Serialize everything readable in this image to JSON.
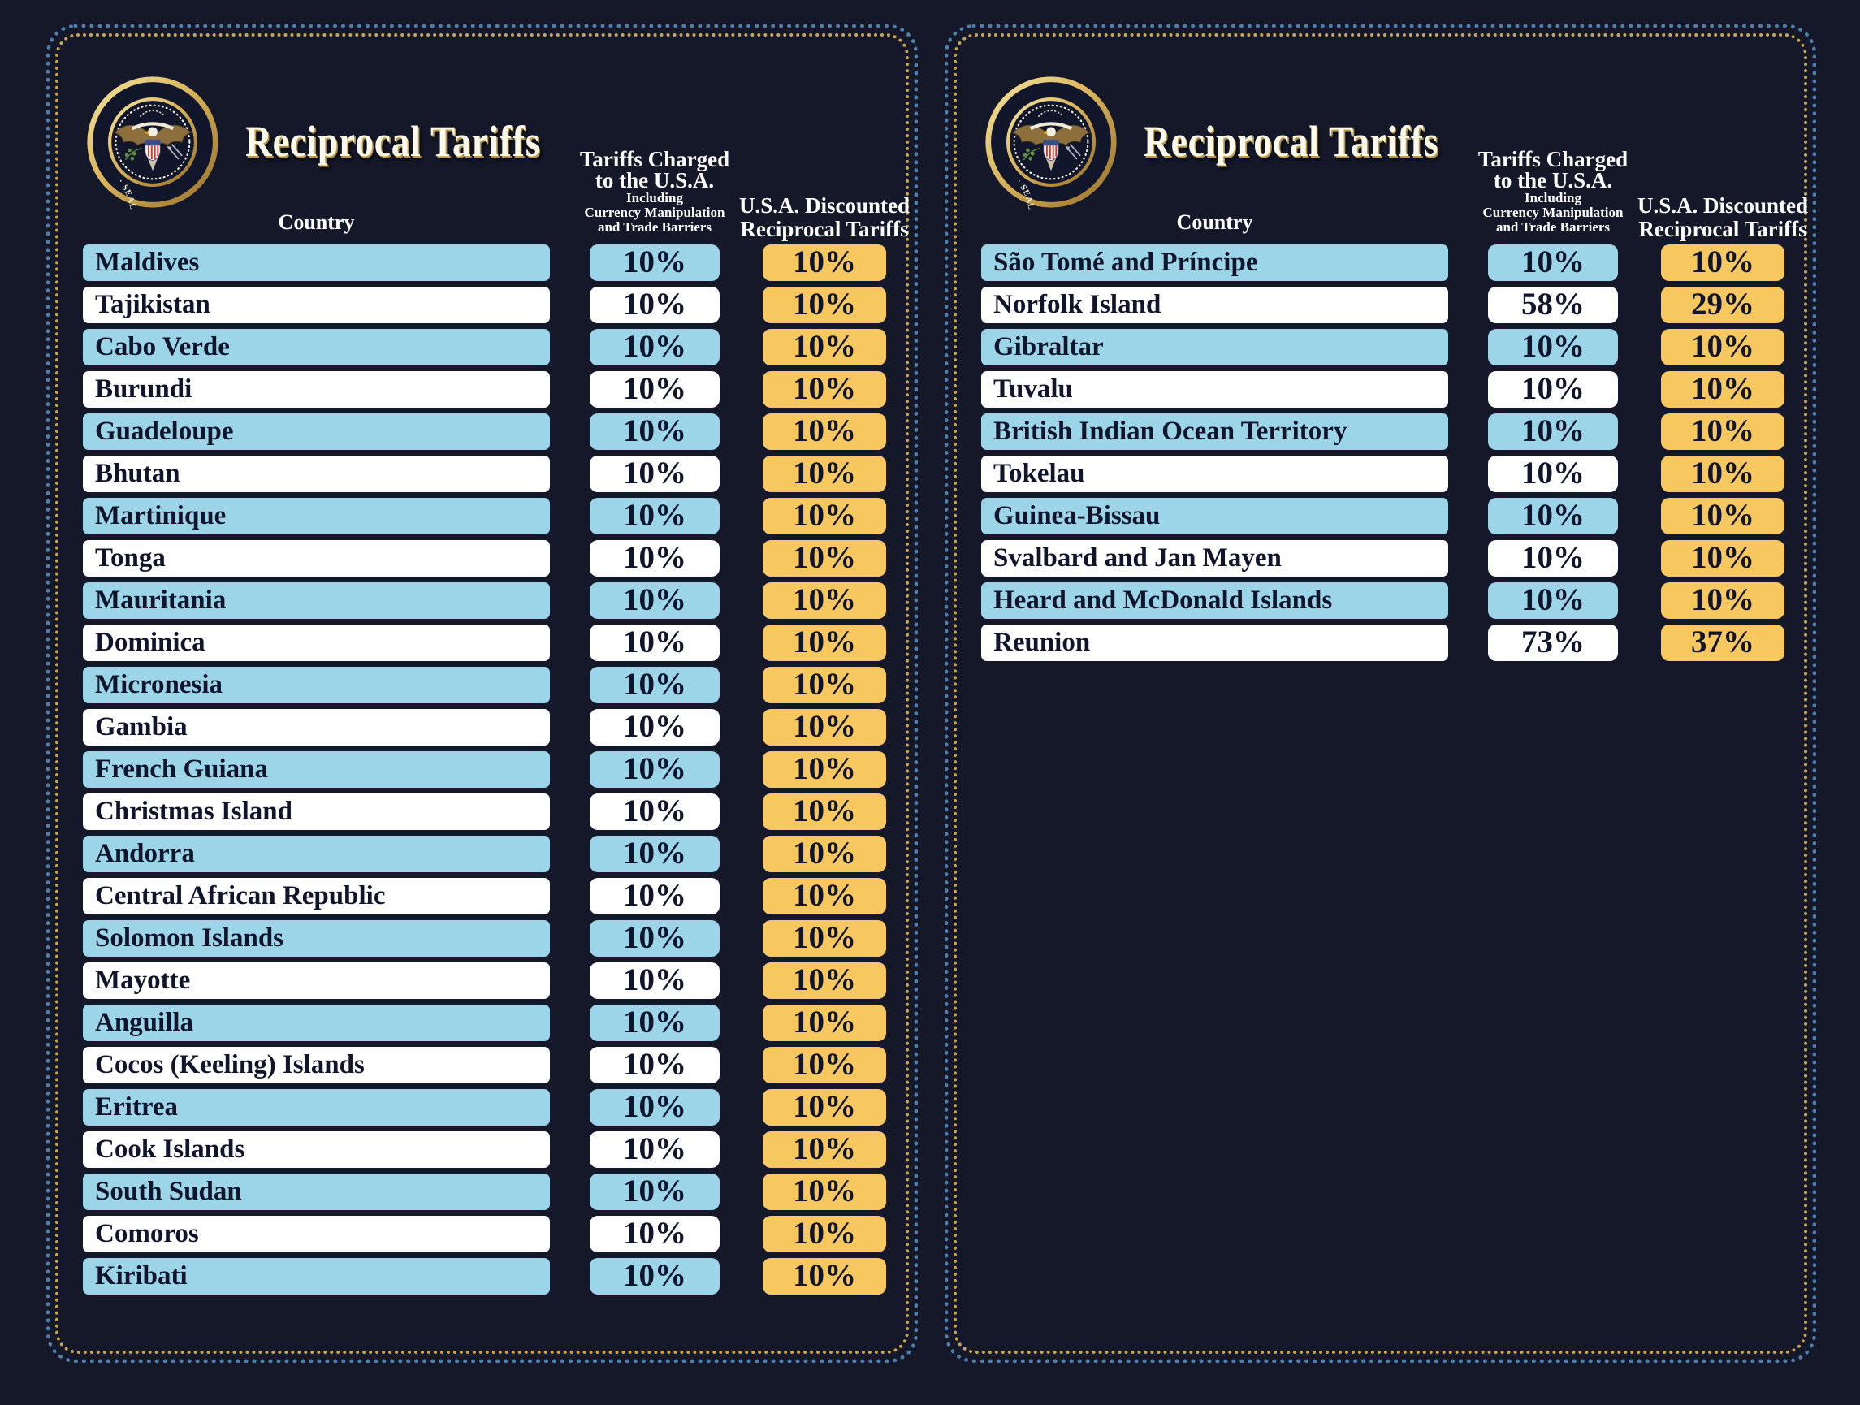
{
  "colors": {
    "background": "#141829",
    "row_blue": "#9dd5e8",
    "row_white": "#ffffff",
    "tariff_yellow": "#f6c85f",
    "border_blue_dots": "#4d7fad",
    "border_gold_dots": "#c9a54e",
    "row_text": "#11152c",
    "header_text": "#ffffff"
  },
  "seal": {
    "ring_text": "· SEAL OF THE PRESIDENT OF THE UNITED STATES ·"
  },
  "panels": [
    {
      "title": "Reciprocal Tariffs",
      "header": {
        "country": "Country",
        "charged_line1": "Tariffs Charged",
        "charged_line2": "to the U.S.A.",
        "charged_sub1": "Including",
        "charged_sub2": "Currency Manipulation",
        "charged_sub3": "and Trade Barriers",
        "discounted_line1": "U.S.A. Discounted",
        "discounted_line2": "Reciprocal Tariffs"
      },
      "rows": [
        {
          "country": "Maldives",
          "charged": "10%",
          "discounted": "10%"
        },
        {
          "country": "Tajikistan",
          "charged": "10%",
          "discounted": "10%"
        },
        {
          "country": "Cabo Verde",
          "charged": "10%",
          "discounted": "10%"
        },
        {
          "country": "Burundi",
          "charged": "10%",
          "discounted": "10%"
        },
        {
          "country": "Guadeloupe",
          "charged": "10%",
          "discounted": "10%"
        },
        {
          "country": "Bhutan",
          "charged": "10%",
          "discounted": "10%"
        },
        {
          "country": "Martinique",
          "charged": "10%",
          "discounted": "10%"
        },
        {
          "country": "Tonga",
          "charged": "10%",
          "discounted": "10%"
        },
        {
          "country": "Mauritania",
          "charged": "10%",
          "discounted": "10%"
        },
        {
          "country": "Dominica",
          "charged": "10%",
          "discounted": "10%"
        },
        {
          "country": "Micronesia",
          "charged": "10%",
          "discounted": "10%"
        },
        {
          "country": "Gambia",
          "charged": "10%",
          "discounted": "10%"
        },
        {
          "country": "French Guiana",
          "charged": "10%",
          "discounted": "10%"
        },
        {
          "country": "Christmas Island",
          "charged": "10%",
          "discounted": "10%"
        },
        {
          "country": "Andorra",
          "charged": "10%",
          "discounted": "10%"
        },
        {
          "country": "Central African Republic",
          "charged": "10%",
          "discounted": "10%"
        },
        {
          "country": "Solomon Islands",
          "charged": "10%",
          "discounted": "10%"
        },
        {
          "country": "Mayotte",
          "charged": "10%",
          "discounted": "10%"
        },
        {
          "country": "Anguilla",
          "charged": "10%",
          "discounted": "10%"
        },
        {
          "country": "Cocos (Keeling) Islands",
          "charged": "10%",
          "discounted": "10%"
        },
        {
          "country": "Eritrea",
          "charged": "10%",
          "discounted": "10%"
        },
        {
          "country": "Cook Islands",
          "charged": "10%",
          "discounted": "10%"
        },
        {
          "country": "South Sudan",
          "charged": "10%",
          "discounted": "10%"
        },
        {
          "country": "Comoros",
          "charged": "10%",
          "discounted": "10%"
        },
        {
          "country": "Kiribati",
          "charged": "10%",
          "discounted": "10%"
        }
      ]
    },
    {
      "title": "Reciprocal Tariffs",
      "header": {
        "country": "Country",
        "charged_line1": "Tariffs Charged",
        "charged_line2": "to the U.S.A.",
        "charged_sub1": "Including",
        "charged_sub2": "Currency Manipulation",
        "charged_sub3": "and Trade Barriers",
        "discounted_line1": "U.S.A. Discounted",
        "discounted_line2": "Reciprocal Tariffs"
      },
      "rows": [
        {
          "country": "São Tomé and Príncipe",
          "charged": "10%",
          "discounted": "10%"
        },
        {
          "country": "Norfolk Island",
          "charged": "58%",
          "discounted": "29%"
        },
        {
          "country": "Gibraltar",
          "charged": "10%",
          "discounted": "10%"
        },
        {
          "country": "Tuvalu",
          "charged": "10%",
          "discounted": "10%"
        },
        {
          "country": "British Indian Ocean Territory",
          "charged": "10%",
          "discounted": "10%"
        },
        {
          "country": "Tokelau",
          "charged": "10%",
          "discounted": "10%"
        },
        {
          "country": "Guinea-Bissau",
          "charged": "10%",
          "discounted": "10%"
        },
        {
          "country": "Svalbard and Jan Mayen",
          "charged": "10%",
          "discounted": "10%"
        },
        {
          "country": "Heard and McDonald Islands",
          "charged": "10%",
          "discounted": "10%"
        },
        {
          "country": "Reunion",
          "charged": "73%",
          "discounted": "37%"
        }
      ]
    }
  ],
  "chart_data": [
    {
      "type": "table",
      "title": "Reciprocal Tariffs",
      "columns": [
        "Country",
        "Tariffs Charged to the U.S.A. Including Currency Manipulation and Trade Barriers",
        "U.S.A. Discounted Reciprocal Tariffs"
      ],
      "rows": [
        [
          "Maldives",
          "10%",
          "10%"
        ],
        [
          "Tajikistan",
          "10%",
          "10%"
        ],
        [
          "Cabo Verde",
          "10%",
          "10%"
        ],
        [
          "Burundi",
          "10%",
          "10%"
        ],
        [
          "Guadeloupe",
          "10%",
          "10%"
        ],
        [
          "Bhutan",
          "10%",
          "10%"
        ],
        [
          "Martinique",
          "10%",
          "10%"
        ],
        [
          "Tonga",
          "10%",
          "10%"
        ],
        [
          "Mauritania",
          "10%",
          "10%"
        ],
        [
          "Dominica",
          "10%",
          "10%"
        ],
        [
          "Micronesia",
          "10%",
          "10%"
        ],
        [
          "Gambia",
          "10%",
          "10%"
        ],
        [
          "French Guiana",
          "10%",
          "10%"
        ],
        [
          "Christmas Island",
          "10%",
          "10%"
        ],
        [
          "Andorra",
          "10%",
          "10%"
        ],
        [
          "Central African Republic",
          "10%",
          "10%"
        ],
        [
          "Solomon Islands",
          "10%",
          "10%"
        ],
        [
          "Mayotte",
          "10%",
          "10%"
        ],
        [
          "Anguilla",
          "10%",
          "10%"
        ],
        [
          "Cocos (Keeling) Islands",
          "10%",
          "10%"
        ],
        [
          "Eritrea",
          "10%",
          "10%"
        ],
        [
          "Cook Islands",
          "10%",
          "10%"
        ],
        [
          "South Sudan",
          "10%",
          "10%"
        ],
        [
          "Comoros",
          "10%",
          "10%"
        ],
        [
          "Kiribati",
          "10%",
          "10%"
        ]
      ]
    },
    {
      "type": "table",
      "title": "Reciprocal Tariffs",
      "columns": [
        "Country",
        "Tariffs Charged to the U.S.A. Including Currency Manipulation and Trade Barriers",
        "U.S.A. Discounted Reciprocal Tariffs"
      ],
      "rows": [
        [
          "São Tomé and Príncipe",
          "10%",
          "10%"
        ],
        [
          "Norfolk Island",
          "58%",
          "29%"
        ],
        [
          "Gibraltar",
          "10%",
          "10%"
        ],
        [
          "Tuvalu",
          "10%",
          "10%"
        ],
        [
          "British Indian Ocean Territory",
          "10%",
          "10%"
        ],
        [
          "Tokelau",
          "10%",
          "10%"
        ],
        [
          "Guinea-Bissau",
          "10%",
          "10%"
        ],
        [
          "Svalbard and Jan Mayen",
          "10%",
          "10%"
        ],
        [
          "Heard and McDonald Islands",
          "10%",
          "10%"
        ],
        [
          "Reunion",
          "73%",
          "37%"
        ]
      ]
    }
  ]
}
